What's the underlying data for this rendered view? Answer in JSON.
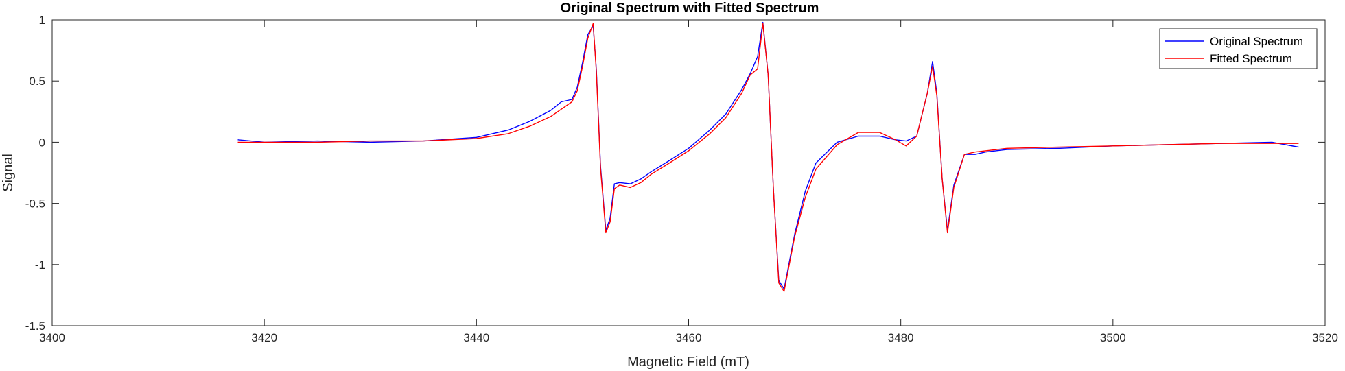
{
  "chart_data": {
    "type": "line",
    "title": "Original Spectrum with Fitted Spectrum",
    "xlabel": "Magnetic Field (mT)",
    "ylabel": "Signal",
    "xlim": [
      3400,
      3520
    ],
    "ylim": [
      -1.5,
      1
    ],
    "xticks": [
      3400,
      3420,
      3440,
      3460,
      3480,
      3500,
      3520
    ],
    "yticks": [
      -1.5,
      -1,
      -0.5,
      0,
      0.5,
      1
    ],
    "xtick_labels": [
      "3400",
      "3420",
      "3440",
      "3460",
      "3480",
      "3500",
      "3520"
    ],
    "ytick_labels": [
      "-1.5",
      "-1",
      "-0.5",
      "0",
      "0.5",
      "1"
    ],
    "grid": false,
    "legend_position": "top-right",
    "series": [
      {
        "name": "Original Spectrum",
        "color": "#0000ff",
        "x": [
          3417.5,
          3420,
          3425,
          3430,
          3435,
          3440,
          3443,
          3445,
          3447,
          3448,
          3449,
          3449.5,
          3450,
          3450.5,
          3451,
          3451.3,
          3451.7,
          3452.2,
          3452.6,
          3453,
          3453.5,
          3454.5,
          3455.5,
          3456.5,
          3458,
          3460,
          3462,
          3463.5,
          3465,
          3465.8,
          3466.5,
          3467,
          3467.5,
          3468,
          3468.5,
          3469,
          3470,
          3471,
          3472,
          3474,
          3476,
          3478,
          3479.5,
          3480.5,
          3481.5,
          3482.5,
          3483,
          3483.4,
          3483.9,
          3484.4,
          3485,
          3486,
          3487,
          3488,
          3490,
          3495,
          3500,
          3505,
          3510,
          3515,
          3517.5
        ],
        "y": [
          0.02,
          0.0,
          0.01,
          0.0,
          0.01,
          0.04,
          0.1,
          0.17,
          0.26,
          0.33,
          0.35,
          0.45,
          0.65,
          0.88,
          0.95,
          0.6,
          -0.2,
          -0.72,
          -0.62,
          -0.34,
          -0.33,
          -0.34,
          -0.3,
          -0.24,
          -0.16,
          -0.05,
          0.1,
          0.23,
          0.43,
          0.56,
          0.7,
          0.98,
          0.55,
          -0.4,
          -1.13,
          -1.2,
          -0.75,
          -0.4,
          -0.17,
          0.0,
          0.05,
          0.05,
          0.02,
          0.01,
          0.05,
          0.4,
          0.66,
          0.4,
          -0.3,
          -0.72,
          -0.35,
          -0.1,
          -0.1,
          -0.08,
          -0.06,
          -0.05,
          -0.03,
          -0.02,
          -0.01,
          0.0,
          -0.04
        ]
      },
      {
        "name": "Fitted Spectrum",
        "color": "#ff0000",
        "x": [
          3417.5,
          3420,
          3425,
          3430,
          3435,
          3440,
          3443,
          3445,
          3447,
          3448,
          3449,
          3449.5,
          3450,
          3450.5,
          3451,
          3451.3,
          3451.7,
          3452.2,
          3452.6,
          3453,
          3453.5,
          3454.5,
          3455.5,
          3456.5,
          3458,
          3460,
          3462,
          3463.5,
          3465,
          3465.8,
          3466.5,
          3467,
          3467.5,
          3468,
          3468.5,
          3469,
          3470,
          3471,
          3472,
          3474,
          3476,
          3478,
          3479.5,
          3480.5,
          3481.5,
          3482.5,
          3483,
          3483.4,
          3483.9,
          3484.4,
          3485,
          3486,
          3487,
          3488,
          3490,
          3495,
          3500,
          3505,
          3510,
          3515,
          3517.5
        ],
        "y": [
          0.0,
          0.0,
          0.0,
          0.01,
          0.01,
          0.03,
          0.07,
          0.13,
          0.21,
          0.27,
          0.33,
          0.42,
          0.62,
          0.85,
          0.97,
          0.58,
          -0.22,
          -0.74,
          -0.65,
          -0.38,
          -0.35,
          -0.37,
          -0.33,
          -0.26,
          -0.18,
          -0.07,
          0.07,
          0.2,
          0.4,
          0.55,
          0.6,
          0.97,
          0.55,
          -0.4,
          -1.15,
          -1.22,
          -0.77,
          -0.45,
          -0.22,
          -0.02,
          0.08,
          0.08,
          0.02,
          -0.03,
          0.05,
          0.4,
          0.62,
          0.38,
          -0.3,
          -0.74,
          -0.37,
          -0.1,
          -0.08,
          -0.07,
          -0.05,
          -0.04,
          -0.03,
          -0.02,
          -0.01,
          -0.01,
          -0.01
        ]
      }
    ]
  }
}
